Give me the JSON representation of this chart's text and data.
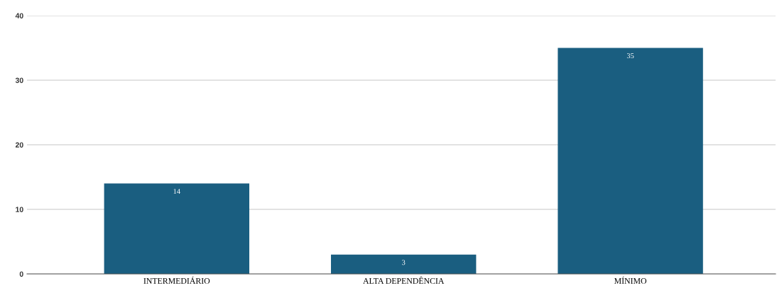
{
  "chart_data": {
    "type": "bar",
    "categories": [
      "INTERMEDIÁRIO",
      "ALTA DEPENDÊNCIA",
      "MÍNIMO"
    ],
    "values": [
      14,
      3,
      35
    ],
    "color": "#1a5e80",
    "ylim": [
      0,
      40
    ],
    "yticks": [
      0,
      10,
      20,
      30,
      40
    ],
    "grid": "y",
    "data_labels": true
  }
}
